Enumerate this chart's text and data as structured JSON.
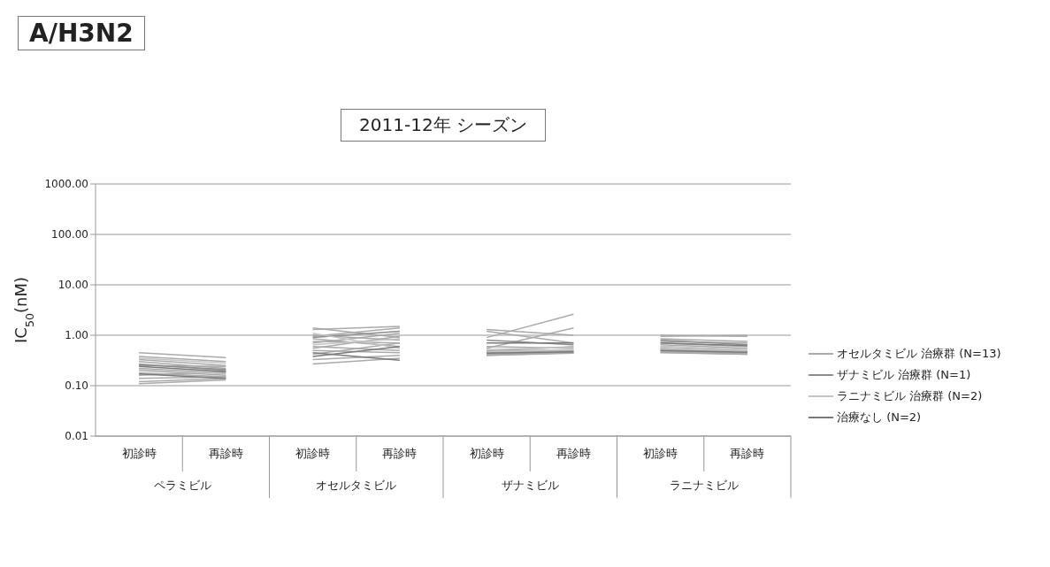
{
  "chart_data": {
    "type": "line",
    "title": "A/H3N2",
    "subtitle": "2011-12年 シーズン",
    "ylabel": "IC$_{50}$(nM)",
    "categories": [
      "初診時",
      "再診時",
      "初診時",
      "再診時",
      "初診時",
      "再診時",
      "初診時",
      "再診時"
    ],
    "annotations": [
      "ペラミビル",
      "オセルタミビル",
      "ザナミビル",
      "ラニナミビル"
    ],
    "log": true,
    "ylim": [
      0.01,
      1000
    ],
    "yticks": [
      {
        "value": 0.01,
        "label": "0.01"
      },
      {
        "value": 0.1,
        "label": "0.10"
      },
      {
        "value": 1,
        "label": "1.00"
      },
      {
        "value": 10,
        "label": "10.00"
      },
      {
        "value": 100,
        "label": "100.00"
      },
      {
        "value": 1000,
        "label": "1000.00"
      }
    ],
    "grid": "y",
    "legend": "right",
    "marker": "none",
    "line_style": "solid",
    "series": [
      {
        "name": "オセルタミビル 治療群 (N=13)",
        "color": "#aaaaaa",
        "values": [
          0.45,
          0.36,
          1.4,
          0.9,
          1.2,
          0.7,
          1.0,
          0.95
        ]
      },
      {
        "color": "#aaaaaa",
        "values": [
          0.38,
          0.3,
          1.3,
          1.5,
          0.9,
          2.6,
          0.95,
          1.0
        ]
      },
      {
        "color": "#aaaaaa",
        "values": [
          0.33,
          0.25,
          1.0,
          0.8,
          1.3,
          1.0,
          0.85,
          0.75
        ]
      },
      {
        "color": "#aaaaaa",
        "values": [
          0.3,
          0.22,
          0.95,
          1.4,
          0.55,
          1.4,
          0.75,
          0.7
        ]
      },
      {
        "color": "#aaaaaa",
        "values": [
          0.27,
          0.2,
          0.85,
          0.6,
          0.6,
          0.55,
          0.7,
          0.6
        ]
      },
      {
        "color": "#aaaaaa",
        "values": [
          0.25,
          0.24,
          0.75,
          0.7,
          0.5,
          0.5,
          0.65,
          0.55
        ]
      },
      {
        "color": "#aaaaaa",
        "values": [
          0.22,
          0.18,
          0.7,
          1.1,
          0.48,
          0.6,
          0.6,
          0.5
        ]
      },
      {
        "color": "#aaaaaa",
        "values": [
          0.2,
          0.16,
          0.6,
          0.5,
          0.45,
          0.5,
          0.55,
          0.48
        ]
      },
      {
        "color": "#aaaaaa",
        "values": [
          0.18,
          0.15,
          0.55,
          0.95,
          0.43,
          0.45,
          0.52,
          0.45
        ]
      },
      {
        "color": "#aaaaaa",
        "values": [
          0.16,
          0.19,
          0.5,
          0.45,
          0.42,
          0.48,
          0.5,
          0.44
        ]
      },
      {
        "color": "#aaaaaa",
        "values": [
          0.14,
          0.15,
          0.42,
          0.7,
          0.41,
          0.46,
          0.48,
          0.43
        ]
      },
      {
        "color": "#aaaaaa",
        "values": [
          0.12,
          0.14,
          0.33,
          0.4,
          0.4,
          0.44,
          0.46,
          0.42
        ]
      },
      {
        "color": "#aaaaaa",
        "values": [
          0.11,
          0.13,
          0.27,
          0.35,
          0.4,
          0.45,
          0.45,
          0.42
        ]
      },
      {
        "name": "ザナミビル 治療群 (N=1)",
        "color": "#8c8c8c",
        "values": [
          0.26,
          0.21,
          0.9,
          1.2,
          0.8,
          0.65,
          0.8,
          0.65
        ]
      },
      {
        "name": "ラニナミビル 治療群 (N=2)",
        "color": "#c4c4c4",
        "values": [
          0.35,
          0.28,
          1.1,
          0.55,
          0.52,
          0.58,
          0.6,
          0.52
        ]
      },
      {
        "color": "#c4c4c4",
        "values": [
          0.21,
          0.17,
          0.65,
          0.85,
          0.47,
          0.52,
          0.52,
          0.5
        ]
      },
      {
        "name": "治療なし (N=2)",
        "color": "#7a7a7a",
        "values": [
          0.24,
          0.19,
          0.45,
          0.32,
          0.7,
          0.7,
          0.7,
          0.62
        ]
      },
      {
        "color": "#7a7a7a",
        "values": [
          0.17,
          0.14,
          0.38,
          0.6,
          0.44,
          0.47,
          0.5,
          0.46
        ]
      }
    ]
  }
}
